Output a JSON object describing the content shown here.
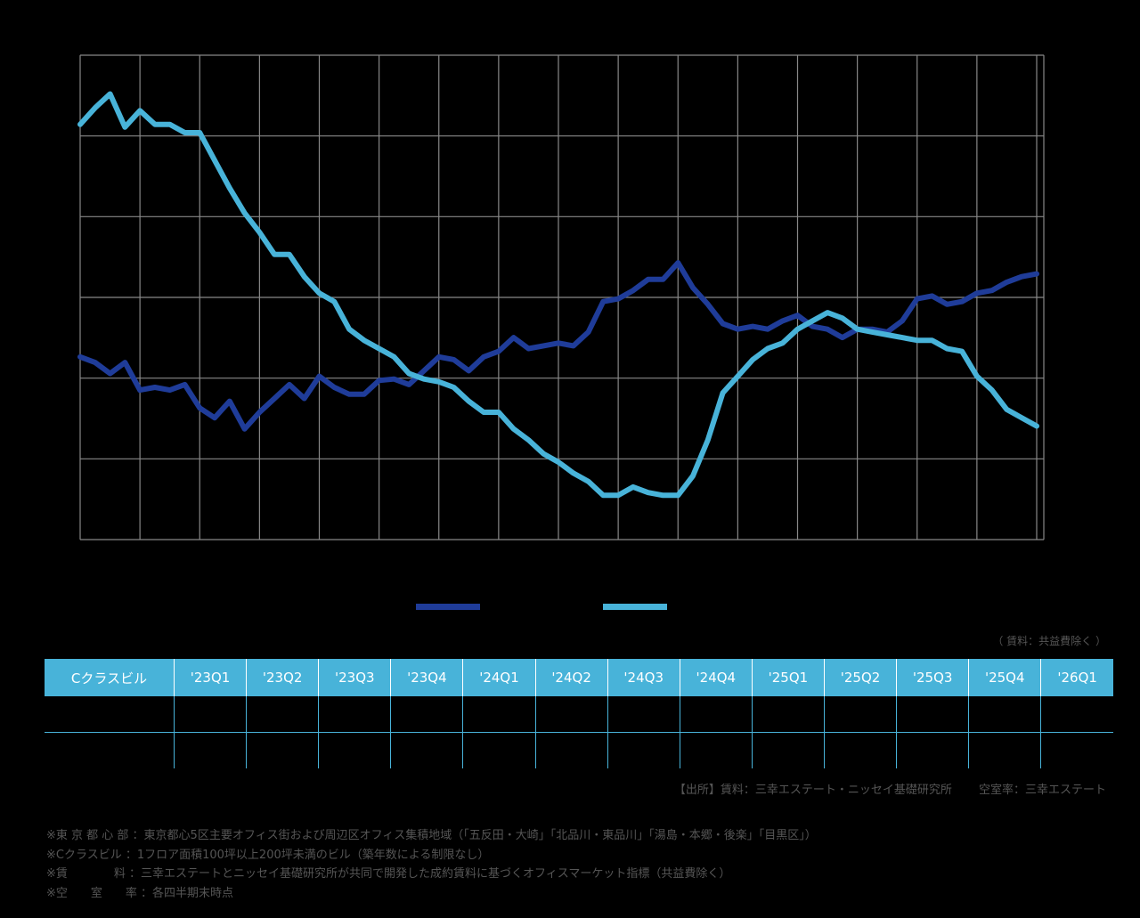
{
  "chart_data": {
    "type": "line",
    "title": "",
    "xlabel": "",
    "ylabel": "",
    "x_count": 65,
    "grid": true,
    "legend_position": "bottom-center",
    "series": [
      {
        "name": "",
        "color": "#1f3c99",
        "values": [
          4.82,
          4.78,
          4.7,
          4.78,
          4.58,
          4.6,
          4.58,
          4.62,
          4.45,
          4.38,
          4.5,
          4.3,
          4.42,
          4.52,
          4.62,
          4.52,
          4.68,
          4.6,
          4.55,
          4.55,
          4.65,
          4.66,
          4.62,
          4.72,
          4.82,
          4.8,
          4.72,
          4.82,
          4.86,
          4.96,
          4.88,
          4.9,
          4.92,
          4.9,
          5.0,
          5.22,
          5.24,
          5.3,
          5.38,
          5.38,
          5.5,
          5.32,
          5.2,
          5.06,
          5.02,
          5.04,
          5.02,
          5.08,
          5.12,
          5.04,
          5.02,
          4.96,
          5.02,
          5.02,
          5.0,
          5.08,
          5.24,
          5.26,
          5.2,
          5.22,
          5.28,
          5.3,
          5.36,
          5.4,
          5.42
        ]
      },
      {
        "name": "",
        "color": "#48b3d9",
        "values": [
          6.5,
          6.62,
          6.72,
          6.48,
          6.6,
          6.5,
          6.5,
          6.44,
          6.44,
          6.24,
          6.04,
          5.86,
          5.72,
          5.56,
          5.56,
          5.4,
          5.28,
          5.22,
          5.02,
          4.94,
          4.88,
          4.82,
          4.7,
          4.66,
          4.64,
          4.6,
          4.5,
          4.42,
          4.42,
          4.3,
          4.22,
          4.12,
          4.06,
          3.98,
          3.92,
          3.82,
          3.82,
          3.88,
          3.84,
          3.82,
          3.82,
          3.96,
          4.22,
          4.56,
          4.68,
          4.8,
          4.88,
          4.92,
          5.02,
          5.08,
          5.14,
          5.1,
          5.02,
          5.0,
          4.98,
          4.96,
          4.94,
          4.94,
          4.88,
          4.86,
          4.68,
          4.58,
          4.44,
          4.38,
          4.32
        ]
      }
    ]
  },
  "table": {
    "columns": [
      "Cクラスビル",
      "'23Q1",
      "'23Q2",
      "'23Q3",
      "'23Q4",
      "'24Q1",
      "'24Q2",
      "'24Q3",
      "'24Q4",
      "'25Q1",
      "'25Q2",
      "'25Q3",
      "'25Q4",
      "'26Q1"
    ],
    "rows": [
      [
        "",
        "",
        "",
        "",
        "",
        "",
        "",
        "",
        "",
        "",
        "",
        "",
        "",
        ""
      ],
      [
        "",
        "",
        "",
        "",
        "",
        "",
        "",
        "",
        "",
        "",
        "",
        "",
        "",
        ""
      ]
    ]
  },
  "source_note": "（ 賃料：共益費除く ）",
  "footer_source": {
    "left": "【出所】賃料：三幸エステート・ニッセイ基礎研究所",
    "right": "空室率：三幸エステート"
  },
  "notes": [
    "※東 京 都 心 部 ：東京都心5区主要オフィス街および周辺区オフィス集積地域（「五反田・大崎」「北品川・東品川」「湯島・本郷・後楽」「目黒区」）",
    "※Cクラスビル ：1フロア面積100坪以上200坪未満のビル（築年数による制限なし）",
    "※賃　　　　料 ：三幸エステートとニッセイ基礎研究所が共同で開発した成約賃料に基づくオフィスマーケット指標（共益費除く）",
    "※空　　室　　率 ：各四半期末時点"
  ]
}
